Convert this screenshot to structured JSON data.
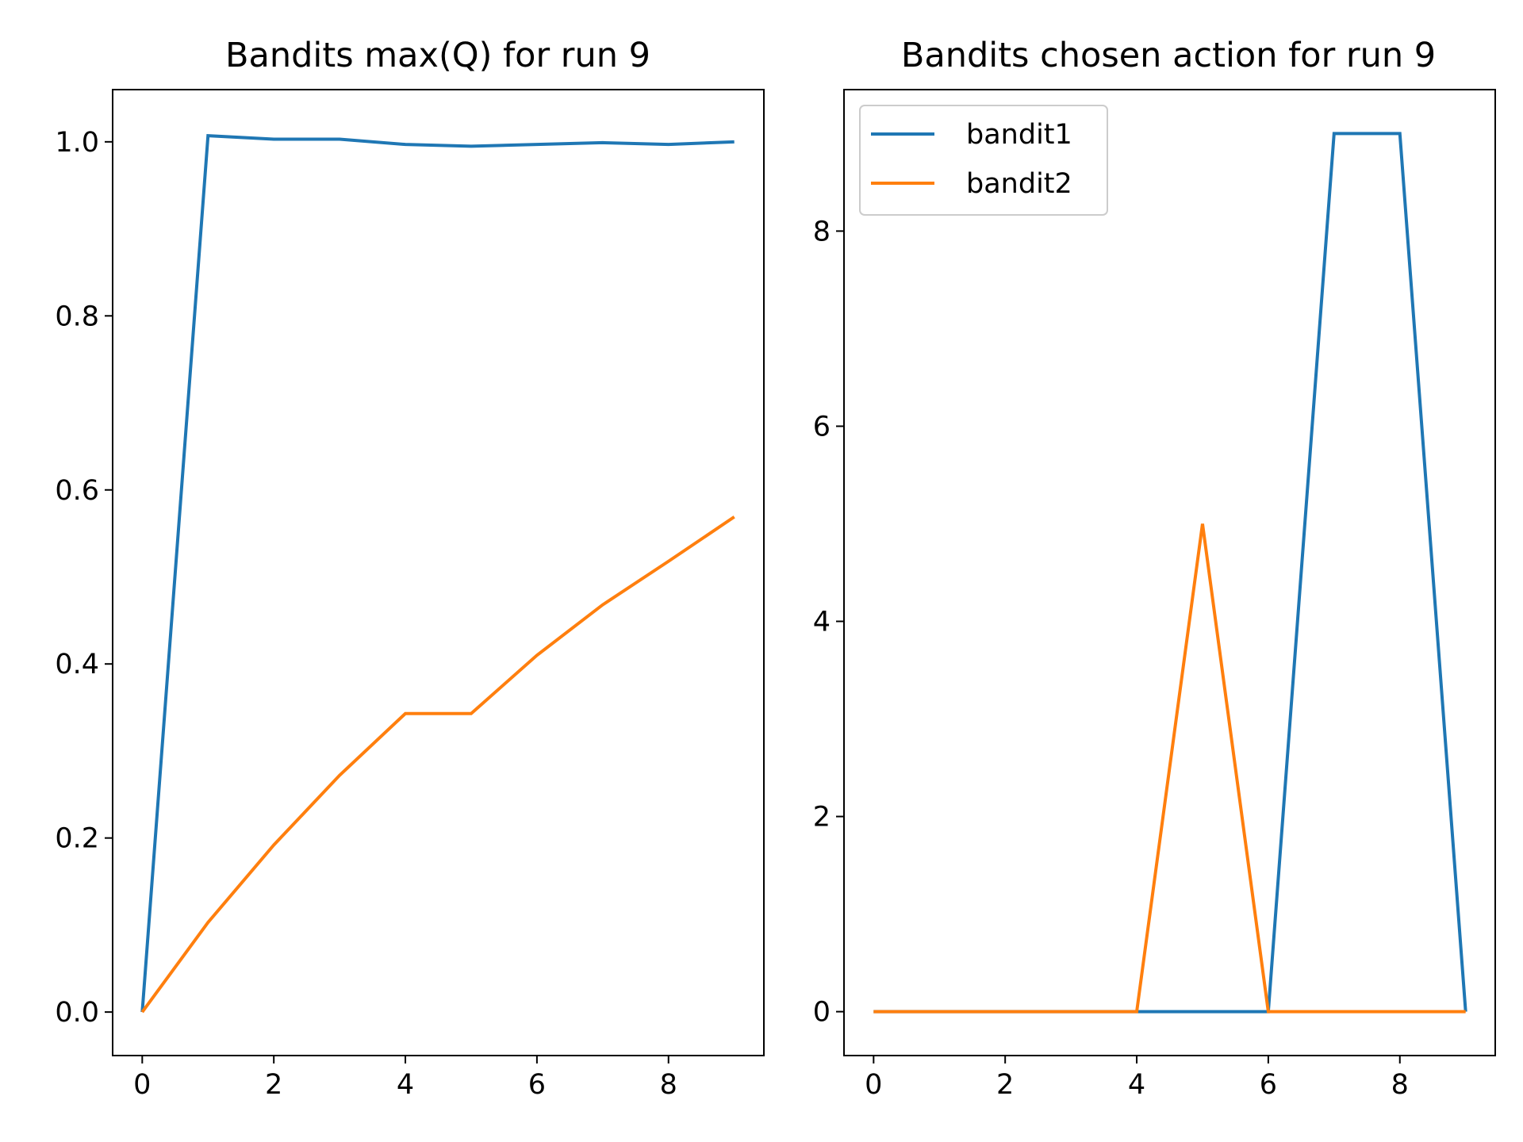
{
  "chart_data": [
    {
      "type": "line",
      "title": "Bandits max(Q) for run 9",
      "xlabel": "",
      "ylabel": "",
      "xlim": [
        -0.45,
        9.45
      ],
      "ylim": [
        -0.05,
        1.06
      ],
      "xticks": [
        0,
        2,
        4,
        6,
        8
      ],
      "xtick_labels": [
        "0",
        "2",
        "4",
        "6",
        "8"
      ],
      "yticks": [
        0.0,
        0.2,
        0.4,
        0.6,
        0.8,
        1.0
      ],
      "ytick_labels": [
        "0.0",
        "0.2",
        "0.4",
        "0.6",
        "0.8",
        "1.0"
      ],
      "grid": false,
      "legend": false,
      "x": [
        0,
        1,
        2,
        3,
        4,
        5,
        6,
        7,
        8,
        9
      ],
      "series": [
        {
          "color": "#1f77b4",
          "values": [
            0.0,
            1.007,
            1.003,
            1.003,
            0.997,
            0.995,
            0.997,
            0.999,
            0.997,
            1.0
          ]
        },
        {
          "color": "#ff7f0e",
          "values": [
            0.0,
            0.103,
            0.192,
            0.272,
            0.343,
            0.343,
            0.41,
            0.468,
            0.518,
            0.569
          ]
        }
      ]
    },
    {
      "type": "line",
      "title": "Bandits chosen action for run 9",
      "xlabel": "",
      "ylabel": "",
      "xlim": [
        -0.45,
        9.45
      ],
      "ylim": [
        -0.45,
        9.45
      ],
      "xticks": [
        0,
        2,
        4,
        6,
        8
      ],
      "xtick_labels": [
        "0",
        "2",
        "4",
        "6",
        "8"
      ],
      "yticks": [
        0,
        2,
        4,
        6,
        8
      ],
      "ytick_labels": [
        "0",
        "2",
        "4",
        "6",
        "8"
      ],
      "grid": false,
      "legend": "top-left",
      "x": [
        0,
        1,
        2,
        3,
        4,
        5,
        6,
        7,
        8,
        9
      ],
      "series": [
        {
          "name": "bandit1",
          "color": "#1f77b4",
          "values": [
            0,
            0,
            0,
            0,
            0,
            0,
            0,
            9,
            9,
            0
          ]
        },
        {
          "name": "bandit2",
          "color": "#ff7f0e",
          "values": [
            0,
            0,
            0,
            0,
            0,
            5,
            0,
            0,
            0,
            0
          ]
        }
      ]
    }
  ]
}
